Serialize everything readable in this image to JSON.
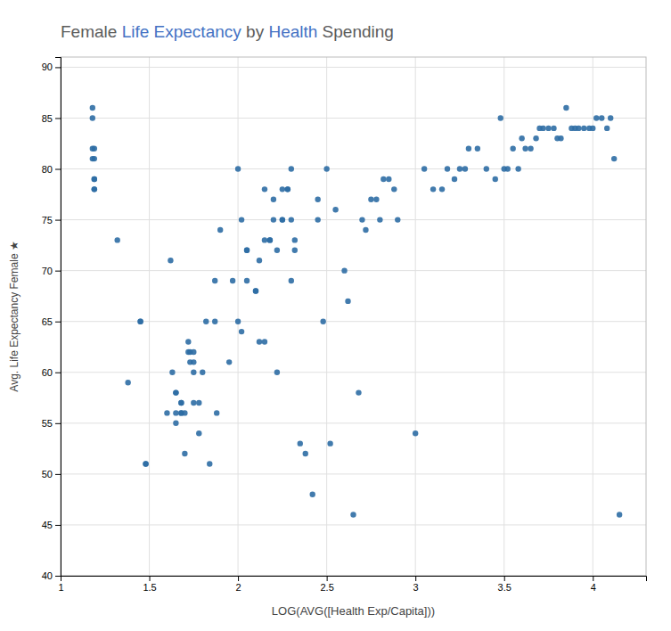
{
  "chart_data": {
    "type": "scatter",
    "title": [
      {
        "text": "Female ",
        "color": "#5c5c5c"
      },
      {
        "text": "Life Expectancy",
        "color": "#4472c4"
      },
      {
        "text": " by ",
        "color": "#5c5c5c"
      },
      {
        "text": "Health",
        "color": "#4472c4"
      },
      {
        "text": " Spending",
        "color": "#5c5c5c"
      }
    ],
    "xlabel": "LOG(AVG([Health Exp/Capita]))",
    "ylabel": "Avg. Life Expectancy Female ★",
    "xlim": [
      1,
      4.3
    ],
    "ylim": [
      40,
      91
    ],
    "xticks": [
      1,
      1.5,
      2,
      2.5,
      3,
      3.5,
      4
    ],
    "yticks": [
      40,
      45,
      50,
      55,
      60,
      65,
      70,
      75,
      80,
      85,
      90
    ],
    "grid": true,
    "color": "#2e6da4",
    "x": [
      1.18,
      1.18,
      1.18,
      1.18,
      1.19,
      1.19,
      1.19,
      1.19,
      1.19,
      1.19,
      1.32,
      1.38,
      1.45,
      1.45,
      1.48,
      1.48,
      1.6,
      1.62,
      1.63,
      1.65,
      1.65,
      1.65,
      1.65,
      1.68,
      1.68,
      1.68,
      1.68,
      1.7,
      1.7,
      1.72,
      1.72,
      1.73,
      1.73,
      1.75,
      1.75,
      1.75,
      1.75,
      1.78,
      1.78,
      1.8,
      1.82,
      1.84,
      1.87,
      1.87,
      1.88,
      1.9,
      1.95,
      1.97,
      2.0,
      2.0,
      2.02,
      2.02,
      2.05,
      2.05,
      2.05,
      2.1,
      2.1,
      2.12,
      2.12,
      2.15,
      2.15,
      2.15,
      2.18,
      2.18,
      2.2,
      2.2,
      2.22,
      2.22,
      2.25,
      2.25,
      2.25,
      2.28,
      2.28,
      2.3,
      2.3,
      2.3,
      2.32,
      2.32,
      2.35,
      2.38,
      2.42,
      2.45,
      2.45,
      2.48,
      2.5,
      2.52,
      2.55,
      2.6,
      2.62,
      2.65,
      2.68,
      2.7,
      2.72,
      2.75,
      2.78,
      2.8,
      2.82,
      2.85,
      2.88,
      2.9,
      3.0,
      3.05,
      3.1,
      3.15,
      3.18,
      3.22,
      3.25,
      3.28,
      3.3,
      3.35,
      3.4,
      3.45,
      3.48,
      3.5,
      3.52,
      3.55,
      3.58,
      3.6,
      3.62,
      3.65,
      3.68,
      3.7,
      3.72,
      3.75,
      3.78,
      3.8,
      3.82,
      3.85,
      3.88,
      3.9,
      3.92,
      3.95,
      3.98,
      4.0,
      4.02,
      4.05,
      4.08,
      4.1,
      4.12,
      4.15
    ],
    "values": [
      86,
      85,
      82,
      81,
      82,
      81,
      79,
      79,
      78,
      78,
      73,
      59,
      65,
      65,
      51,
      51,
      56,
      71,
      60,
      58,
      58,
      56,
      55,
      57,
      57,
      56,
      56,
      52,
      56,
      63,
      62,
      62,
      61,
      62,
      61,
      60,
      57,
      57,
      54,
      60,
      65,
      51,
      69,
      65,
      56,
      74,
      61,
      69,
      80,
      65,
      75,
      64,
      72,
      72,
      69,
      68,
      68,
      71,
      63,
      78,
      73,
      63,
      73,
      73,
      77,
      75,
      72,
      60,
      78,
      75,
      75,
      78,
      78,
      80,
      75,
      69,
      73,
      72,
      53,
      52,
      48,
      77,
      75,
      65,
      80,
      53,
      76,
      70,
      67,
      46,
      58,
      75,
      74,
      77,
      77,
      75,
      79,
      79,
      78,
      75,
      54,
      80,
      78,
      78,
      80,
      79,
      80,
      80,
      82,
      82,
      80,
      79,
      85,
      80,
      80,
      82,
      80,
      83,
      82,
      82,
      83,
      84,
      84,
      84,
      84,
      83,
      83,
      86,
      84,
      84,
      84,
      84,
      84,
      84,
      85,
      85,
      84,
      85,
      81,
      46
    ]
  }
}
